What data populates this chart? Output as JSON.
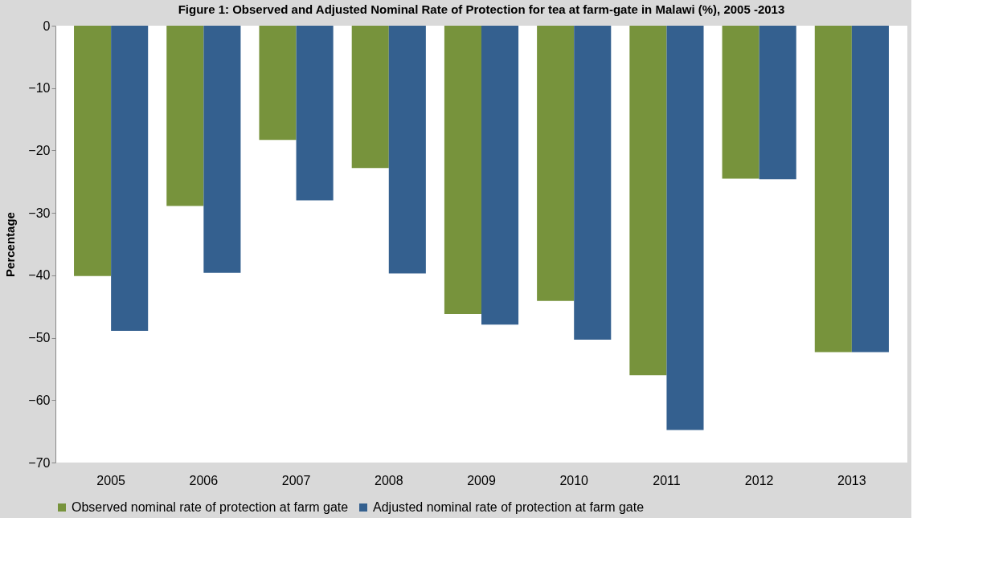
{
  "chart_data": {
    "type": "bar",
    "title": "Figure 1: Observed and Adjusted Nominal Rate of Protection for tea at farm-gate in Malawi (%), 2005 -2013",
    "ylabel": "Percentage",
    "categories": [
      "2005",
      "2006",
      "2007",
      "2008",
      "2009",
      "2010",
      "2011",
      "2012",
      "2013"
    ],
    "series": [
      {
        "name": "Observed nominal rate of protection at farm gate",
        "color": "#77933c",
        "values": [
          -40.1,
          -28.9,
          -18.3,
          -22.8,
          -46.2,
          -44.1,
          -56.0,
          -24.5,
          -52.3
        ]
      },
      {
        "name": "Adjusted nominal rate of protection at farm gate",
        "color": "#34608f",
        "values": [
          -48.9,
          -39.6,
          -28.0,
          -39.7,
          -47.9,
          -50.3,
          -64.8,
          -24.6,
          -52.3
        ]
      }
    ],
    "ylim": [
      -70,
      0
    ],
    "yticks": [
      0,
      -10,
      -20,
      -30,
      -40,
      -50,
      -60,
      -70
    ],
    "grid": false,
    "legend": "bottom"
  }
}
